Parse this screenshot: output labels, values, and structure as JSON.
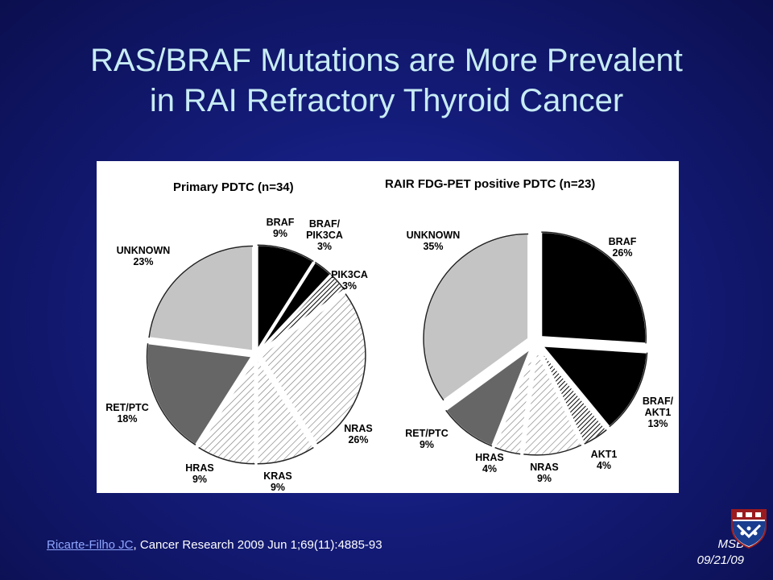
{
  "slide": {
    "title_line1": "RAS/BRAF Mutations are More Prevalent",
    "title_line2": "in RAI Refractory Thyroid Cancer",
    "citation_link": "Ricarte-Filho JC",
    "citation_rest": ", Cancer Research 2009 Jun 1;69(11):4885-93",
    "author": "MSB",
    "date": "09/21/09",
    "logo": "university-shield-icon"
  },
  "chart_data": [
    {
      "type": "pie",
      "title": "Primary PDTC (n=34)",
      "slices": [
        {
          "name": "BRAF",
          "value": 9,
          "label": "9%",
          "fill": "black"
        },
        {
          "name": "BRAF/ PIK3CA",
          "value": 3,
          "label": "3%",
          "fill": "black"
        },
        {
          "name": "PIK3CA",
          "value": 3,
          "label": "3%",
          "fill": "hatch-dark"
        },
        {
          "name": "NRAS",
          "value": 26,
          "label": "26%",
          "fill": "hatch-light"
        },
        {
          "name": "KRAS",
          "value": 9,
          "label": "9%",
          "fill": "hatch-light"
        },
        {
          "name": "HRAS",
          "value": 9,
          "label": "9%",
          "fill": "hatch-light"
        },
        {
          "name": "RET/PTC",
          "value": 18,
          "label": "18%",
          "fill": "dark-gray"
        },
        {
          "name": "UNKNOWN",
          "value": 23,
          "label": "23%",
          "fill": "light-gray"
        }
      ]
    },
    {
      "type": "pie",
      "title": "RAIR FDG-PET positive PDTC (n=23)",
      "slices": [
        {
          "name": "BRAF",
          "value": 26,
          "label": "26%",
          "fill": "black"
        },
        {
          "name": "BRAF/ AKT1",
          "value": 13,
          "label": "13%",
          "fill": "black"
        },
        {
          "name": "AKT1",
          "value": 4,
          "label": "4%",
          "fill": "hatch-dark"
        },
        {
          "name": "NRAS",
          "value": 9,
          "label": "9%",
          "fill": "hatch-light"
        },
        {
          "name": "HRAS",
          "value": 4,
          "label": "4%",
          "fill": "hatch-light"
        },
        {
          "name": "RET/PTC",
          "value": 9,
          "label": "9%",
          "fill": "dark-gray"
        },
        {
          "name": "UNKNOWN",
          "value": 35,
          "label": "35%",
          "fill": "light-gray"
        }
      ]
    }
  ]
}
